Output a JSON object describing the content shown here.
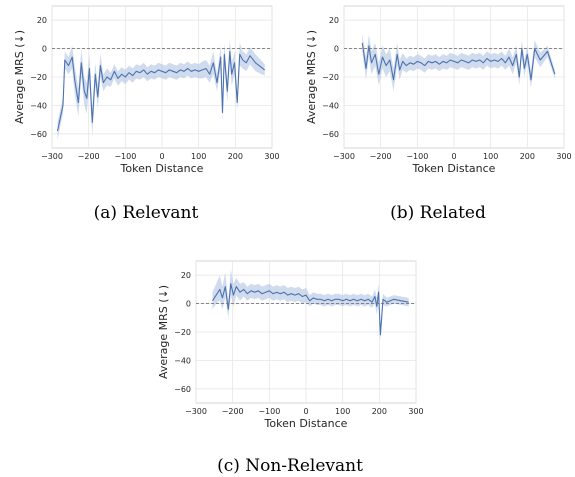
{
  "chart_data": [
    {
      "type": "line",
      "caption": "(a) Relevant",
      "xlabel": "Token Distance",
      "ylabel": "Average MRS (↓)",
      "xlim": [
        -300,
        300
      ],
      "ylim": [
        -70,
        30
      ],
      "xticks": [
        -300,
        -200,
        -100,
        0,
        100,
        200,
        300
      ],
      "yticks": [
        -60,
        -40,
        -20,
        0,
        20
      ],
      "xtick_labels": [
        "−300",
        "−200",
        "−100",
        "0",
        "100",
        "200",
        "300"
      ],
      "ytick_labels": [
        "−60",
        "−40",
        "−20",
        "0",
        "20"
      ],
      "reference_line": {
        "y": 0,
        "style": "dashed"
      },
      "series": [
        {
          "color": "#4c72b0",
          "band_color": "#a9bfe0",
          "x": [
            -285,
            -270,
            -265,
            -255,
            -245,
            -238,
            -228,
            -220,
            -212,
            -205,
            -198,
            -190,
            -182,
            -175,
            -168,
            -160,
            -150,
            -140,
            -130,
            -120,
            -110,
            -100,
            -90,
            -80,
            -70,
            -60,
            -50,
            -40,
            -30,
            -20,
            -10,
            0,
            10,
            20,
            30,
            40,
            50,
            60,
            70,
            80,
            90,
            100,
            110,
            120,
            130,
            140,
            150,
            160,
            165,
            170,
            178,
            185,
            190,
            198,
            205,
            212,
            220,
            230,
            240,
            255,
            280
          ],
          "y": [
            -58,
            -40,
            -8,
            -12,
            -6,
            -22,
            -38,
            -10,
            -30,
            -35,
            -14,
            -52,
            -18,
            -34,
            -12,
            -24,
            -20,
            -22,
            -16,
            -21,
            -18,
            -20,
            -17,
            -19,
            -16,
            -17,
            -15,
            -18,
            -16,
            -17,
            -15,
            -16,
            -17,
            -15,
            -16,
            -17,
            -15,
            -16,
            -14,
            -16,
            -15,
            -16,
            -15,
            -14,
            -18,
            -10,
            -24,
            -6,
            -45,
            -4,
            -30,
            -2,
            -18,
            -10,
            -38,
            -4,
            -8,
            -10,
            -5,
            -10,
            -15
          ],
          "lower": [
            -64,
            -46,
            -14,
            -18,
            -14,
            -32,
            -48,
            -20,
            -40,
            -46,
            -24,
            -62,
            -26,
            -42,
            -20,
            -30,
            -26,
            -27,
            -21,
            -26,
            -23,
            -25,
            -22,
            -24,
            -21,
            -22,
            -20,
            -23,
            -21,
            -22,
            -20,
            -21,
            -22,
            -20,
            -21,
            -22,
            -20,
            -21,
            -19,
            -21,
            -20,
            -21,
            -21,
            -20,
            -24,
            -18,
            -30,
            -14,
            -52,
            -12,
            -38,
            -10,
            -26,
            -18,
            -44,
            -12,
            -14,
            -16,
            -11,
            -16,
            -19
          ],
          "upper": [
            -52,
            -34,
            -2,
            -6,
            2,
            -12,
            -28,
            0,
            -20,
            -24,
            -4,
            -42,
            -10,
            -26,
            -4,
            -18,
            -14,
            -17,
            -11,
            -16,
            -13,
            -15,
            -12,
            -14,
            -11,
            -12,
            -10,
            -13,
            -11,
            -12,
            -10,
            -11,
            -12,
            -10,
            -11,
            -12,
            -10,
            -11,
            -9,
            -11,
            -10,
            -11,
            -9,
            -8,
            -12,
            -2,
            -18,
            2,
            -38,
            4,
            -22,
            6,
            -10,
            -2,
            -32,
            4,
            -2,
            -4,
            1,
            -4,
            -11
          ]
        }
      ]
    },
    {
      "type": "line",
      "caption": "(b) Related",
      "xlabel": "Token Distance",
      "ylabel": "Average MRS (↓)",
      "xlim": [
        -300,
        300
      ],
      "ylim": [
        -70,
        30
      ],
      "xticks": [
        -300,
        -200,
        -100,
        0,
        100,
        200,
        300
      ],
      "yticks": [
        -60,
        -40,
        -20,
        0,
        20
      ],
      "xtick_labels": [
        "−300",
        "−200",
        "−100",
        "0",
        "100",
        "200",
        "300"
      ],
      "ytick_labels": [
        "−60",
        "−40",
        "−20",
        "0",
        "20"
      ],
      "reference_line": {
        "y": 0,
        "style": "dashed"
      },
      "series": [
        {
          "color": "#4c72b0",
          "band_color": "#a9bfe0",
          "x": [
            -250,
            -240,
            -232,
            -225,
            -215,
            -205,
            -195,
            -185,
            -175,
            -165,
            -155,
            -148,
            -140,
            -130,
            -120,
            -110,
            -100,
            -90,
            -80,
            -70,
            -60,
            -50,
            -40,
            -30,
            -20,
            -10,
            0,
            10,
            20,
            30,
            40,
            50,
            60,
            70,
            80,
            90,
            100,
            110,
            120,
            130,
            140,
            150,
            160,
            170,
            178,
            185,
            192,
            200,
            210,
            220,
            235,
            255,
            275
          ],
          "y": [
            4,
            -14,
            2,
            -10,
            -4,
            -18,
            -6,
            -12,
            -8,
            -22,
            -4,
            -15,
            -9,
            -12,
            -10,
            -11,
            -9,
            -10,
            -12,
            -9,
            -10,
            -9,
            -11,
            -9,
            -10,
            -8,
            -9,
            -10,
            -8,
            -9,
            -10,
            -8,
            -9,
            -8,
            -10,
            -7,
            -9,
            -8,
            -9,
            -7,
            -10,
            -6,
            -12,
            -4,
            -20,
            0,
            -14,
            -4,
            -22,
            0,
            -8,
            -2,
            -18
          ],
          "lower": [
            -2,
            -22,
            -6,
            -18,
            -12,
            -26,
            -14,
            -20,
            -16,
            -30,
            -12,
            -22,
            -15,
            -17,
            -15,
            -16,
            -14,
            -15,
            -17,
            -14,
            -15,
            -14,
            -16,
            -14,
            -15,
            -13,
            -14,
            -15,
            -13,
            -14,
            -15,
            -13,
            -14,
            -13,
            -15,
            -12,
            -14,
            -13,
            -14,
            -12,
            -15,
            -12,
            -18,
            -10,
            -26,
            -6,
            -20,
            -10,
            -28,
            -6,
            -13,
            -6,
            -21
          ],
          "upper": [
            10,
            -6,
            10,
            -2,
            4,
            -10,
            2,
            -4,
            0,
            -14,
            4,
            -8,
            -3,
            -7,
            -5,
            -6,
            -4,
            -5,
            -7,
            -4,
            -5,
            -4,
            -6,
            -4,
            -5,
            -3,
            -4,
            -5,
            -3,
            -4,
            -5,
            -3,
            -4,
            -3,
            -5,
            -2,
            -4,
            -3,
            -4,
            -2,
            -5,
            0,
            -6,
            2,
            -14,
            6,
            -8,
            2,
            -16,
            6,
            -3,
            2,
            -15
          ]
        }
      ]
    },
    {
      "type": "line",
      "caption": "(c) Non-Relevant",
      "xlabel": "Token Distance",
      "ylabel": "Average MRS (↓)",
      "xlim": [
        -300,
        300
      ],
      "ylim": [
        -70,
        30
      ],
      "xticks": [
        -300,
        -200,
        -100,
        0,
        100,
        200,
        300
      ],
      "yticks": [
        -60,
        -40,
        -20,
        0,
        20
      ],
      "xtick_labels": [
        "−300",
        "−200",
        "−100",
        "0",
        "100",
        "200",
        "300"
      ],
      "ytick_labels": [
        "−60",
        "−40",
        "−20",
        "0",
        "20"
      ],
      "reference_line": {
        "y": 0,
        "style": "dashed"
      },
      "series": [
        {
          "color": "#4c72b0",
          "band_color": "#a9bfe0",
          "x": [
            -255,
            -245,
            -235,
            -228,
            -220,
            -212,
            -205,
            -198,
            -190,
            -180,
            -170,
            -160,
            -150,
            -140,
            -130,
            -120,
            -110,
            -100,
            -90,
            -80,
            -70,
            -60,
            -50,
            -40,
            -30,
            -20,
            -10,
            0,
            10,
            20,
            30,
            40,
            50,
            60,
            70,
            80,
            90,
            100,
            110,
            120,
            130,
            140,
            150,
            160,
            170,
            180,
            188,
            193,
            198,
            203,
            210,
            220,
            240,
            260,
            280
          ],
          "y": [
            2,
            6,
            10,
            4,
            12,
            -4,
            14,
            6,
            12,
            8,
            10,
            7,
            9,
            8,
            9,
            7,
            8,
            9,
            7,
            8,
            7,
            8,
            6,
            7,
            6,
            7,
            5,
            6,
            2,
            4,
            3,
            3,
            2,
            3,
            2,
            3,
            3,
            2,
            3,
            2,
            3,
            2,
            3,
            2,
            3,
            1,
            5,
            -2,
            8,
            -22,
            3,
            1,
            3,
            2,
            1
          ],
          "lower": [
            -4,
            0,
            2,
            -4,
            4,
            -10,
            6,
            -2,
            6,
            2,
            5,
            2,
            4,
            3,
            4,
            2,
            3,
            4,
            2,
            3,
            2,
            3,
            1,
            2,
            1,
            2,
            0,
            1,
            -2,
            0,
            -1,
            -1,
            -2,
            -1,
            -2,
            -1,
            -1,
            -2,
            -1,
            -2,
            -1,
            -2,
            -1,
            -2,
            -1,
            -3,
            0,
            -8,
            2,
            -26,
            -1,
            -2,
            0,
            -1,
            -2
          ],
          "upper": [
            8,
            14,
            20,
            12,
            22,
            2,
            24,
            14,
            18,
            14,
            15,
            12,
            14,
            13,
            14,
            12,
            13,
            14,
            12,
            13,
            12,
            13,
            11,
            12,
            11,
            12,
            10,
            11,
            6,
            8,
            7,
            7,
            6,
            7,
            6,
            7,
            7,
            6,
            7,
            6,
            7,
            6,
            7,
            6,
            7,
            5,
            10,
            4,
            14,
            -18,
            7,
            4,
            6,
            5,
            4
          ]
        }
      ]
    }
  ]
}
